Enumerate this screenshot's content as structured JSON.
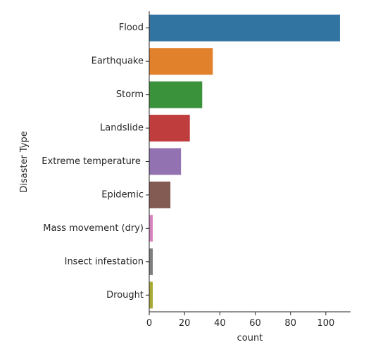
{
  "chart_data": {
    "type": "bar",
    "orientation": "horizontal",
    "categories": [
      "Flood",
      "Earthquake",
      "Storm",
      "Landslide",
      "Extreme temperature ",
      "Epidemic",
      "Mass movement (dry)",
      "Insect infestation",
      "Drought"
    ],
    "values": [
      108,
      36,
      30,
      23,
      18,
      12,
      2,
      2,
      2
    ],
    "colors": [
      "#3274a1",
      "#e1812c",
      "#3a923a",
      "#c03d3e",
      "#9372b2",
      "#845b53",
      "#d684bd",
      "#7f7f7f",
      "#a9aa35"
    ],
    "xlabel": "count",
    "ylabel": "Disaster Type",
    "xlim": [
      0,
      114
    ],
    "xticks": [
      0,
      20,
      40,
      60,
      80,
      100
    ],
    "grid": false,
    "legend": "none"
  }
}
